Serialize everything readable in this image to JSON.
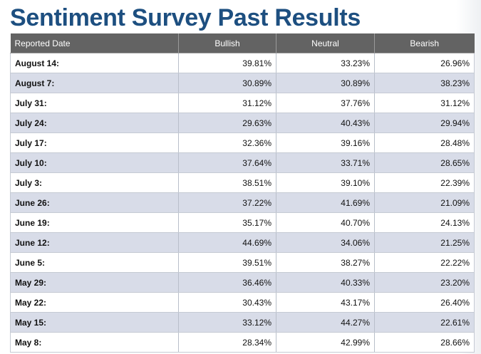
{
  "title": "Sentiment Survey Past Results",
  "table": {
    "headers": [
      "Reported Date",
      "Bullish",
      "Neutral",
      "Bearish"
    ],
    "rows": [
      [
        "August 14:",
        "39.81%",
        "33.23%",
        "26.96%"
      ],
      [
        "August 7:",
        "30.89%",
        "30.89%",
        "38.23%"
      ],
      [
        "July 31:",
        "31.12%",
        "37.76%",
        "31.12%"
      ],
      [
        "July 24:",
        "29.63%",
        "40.43%",
        "29.94%"
      ],
      [
        "July 17:",
        "32.36%",
        "39.16%",
        "28.48%"
      ],
      [
        "July 10:",
        "37.64%",
        "33.71%",
        "28.65%"
      ],
      [
        "July 3:",
        "38.51%",
        "39.10%",
        "22.39%"
      ],
      [
        "June 26:",
        "37.22%",
        "41.69%",
        "21.09%"
      ],
      [
        "June 19:",
        "35.17%",
        "40.70%",
        "24.13%"
      ],
      [
        "June 12:",
        "44.69%",
        "34.06%",
        "21.25%"
      ],
      [
        "June 5:",
        "39.51%",
        "38.27%",
        "22.22%"
      ],
      [
        "May 29:",
        "36.46%",
        "40.33%",
        "23.20%"
      ],
      [
        "May 22:",
        "30.43%",
        "43.17%",
        "26.40%"
      ],
      [
        "May 15:",
        "33.12%",
        "44.27%",
        "22.61%"
      ],
      [
        "May 8:",
        "28.34%",
        "42.99%",
        "28.66%"
      ]
    ]
  },
  "colors": {
    "title": "#1d4f80",
    "header_bg": "#636363",
    "row_alt": "#d8dce8"
  }
}
